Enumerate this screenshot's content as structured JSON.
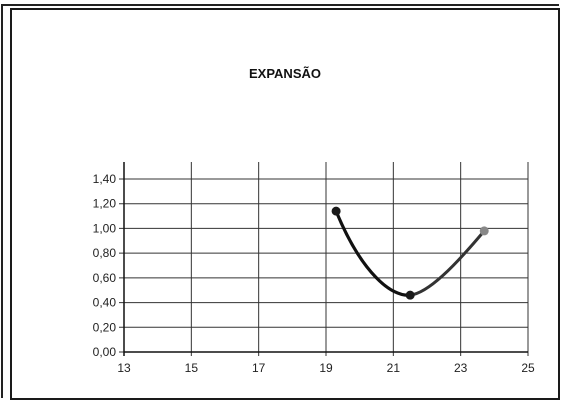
{
  "chart_data": {
    "type": "line",
    "title": "EXPANSÃO",
    "xlabel": "",
    "ylabel": "",
    "xlim": [
      13,
      25
    ],
    "ylim": [
      0,
      1.4
    ],
    "x_ticks": [
      "13",
      "15",
      "17",
      "19",
      "21",
      "23",
      "25"
    ],
    "y_ticks": [
      "0,00",
      "0,20",
      "0,40",
      "0,60",
      "0,80",
      "1,00",
      "1,20",
      "1,40"
    ],
    "grid": true,
    "series": [
      {
        "x": [
          19.3,
          21.5,
          23.7
        ],
        "y": [
          1.14,
          0.46,
          0.98
        ],
        "marker_colors": [
          "#1a1a1a",
          "#1a1a1a",
          "#888888"
        ],
        "line_color": "#111111"
      }
    ]
  }
}
